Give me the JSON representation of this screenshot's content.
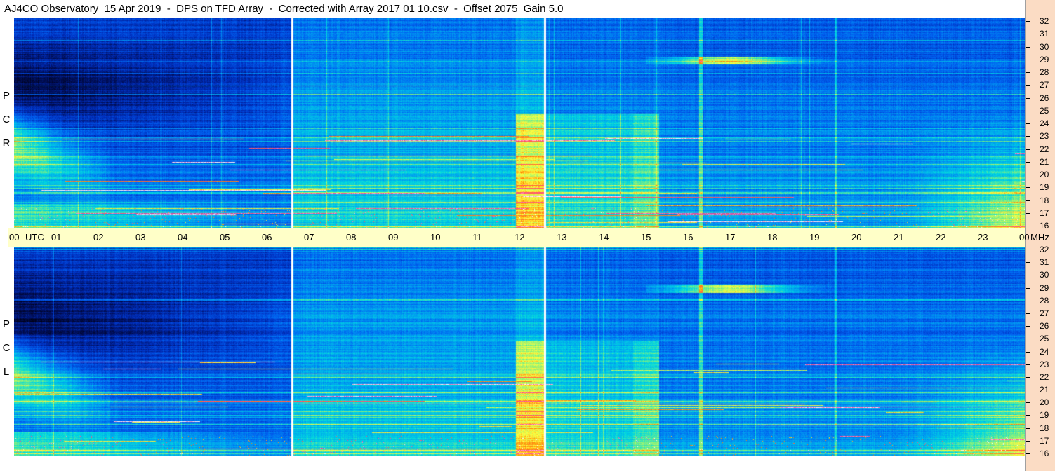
{
  "title": "AJ4CO Observatory  15 Apr 2019  -  DPS on TFD Array  -  Corrected with Array 2017 01 10.csv  -  Offset 2075  Gain 5.0",
  "chart_data": [
    {
      "type": "heatmap",
      "panel": "top",
      "polarization_label": [
        "R",
        "C",
        "P"
      ],
      "x_unit": "UTC",
      "x_ticks": [
        "00",
        "01",
        "02",
        "03",
        "04",
        "05",
        "06",
        "07",
        "08",
        "09",
        "10",
        "11",
        "12",
        "13",
        "14",
        "15",
        "16",
        "17",
        "18",
        "19",
        "20",
        "21",
        "22",
        "23",
        "00"
      ],
      "x_range_hours": [
        0,
        24
      ],
      "y_unit": "MHz",
      "y_ticks": [
        16,
        17,
        18,
        19,
        20,
        21,
        22,
        23,
        24,
        25,
        26,
        27,
        28,
        29,
        30,
        31,
        32
      ],
      "y_range_mhz": [
        16,
        32
      ],
      "gaps_utc": [
        6.6,
        12.6
      ],
      "colormap": [
        "#000010",
        "#001060",
        "#0030c0",
        "#0060f0",
        "#00a0f0",
        "#00d8e0",
        "#80f080",
        "#ffff40",
        "#ff8000",
        "#ff40a0",
        "#ffffff"
      ]
    },
    {
      "type": "heatmap",
      "panel": "bottom",
      "polarization_label": [
        "L",
        "C",
        "P"
      ],
      "x_unit": "UTC",
      "x_ticks": [
        "00",
        "01",
        "02",
        "03",
        "04",
        "05",
        "06",
        "07",
        "08",
        "09",
        "10",
        "11",
        "12",
        "13",
        "14",
        "15",
        "16",
        "17",
        "18",
        "19",
        "20",
        "21",
        "22",
        "23",
        "00"
      ],
      "x_range_hours": [
        0,
        24
      ],
      "y_unit": "MHz",
      "y_ticks": [
        16,
        17,
        18,
        19,
        20,
        21,
        22,
        23,
        24,
        25,
        26,
        27,
        28,
        29,
        30,
        31,
        32
      ],
      "y_range_mhz": [
        16,
        32
      ],
      "gaps_utc": [
        6.6,
        12.6
      ],
      "colormap": [
        "#000010",
        "#001060",
        "#0030c0",
        "#0060f0",
        "#00a0f0",
        "#00d8e0",
        "#80f080",
        "#ffff40",
        "#ff8000",
        "#ff40a0",
        "#ffffff"
      ]
    }
  ]
}
